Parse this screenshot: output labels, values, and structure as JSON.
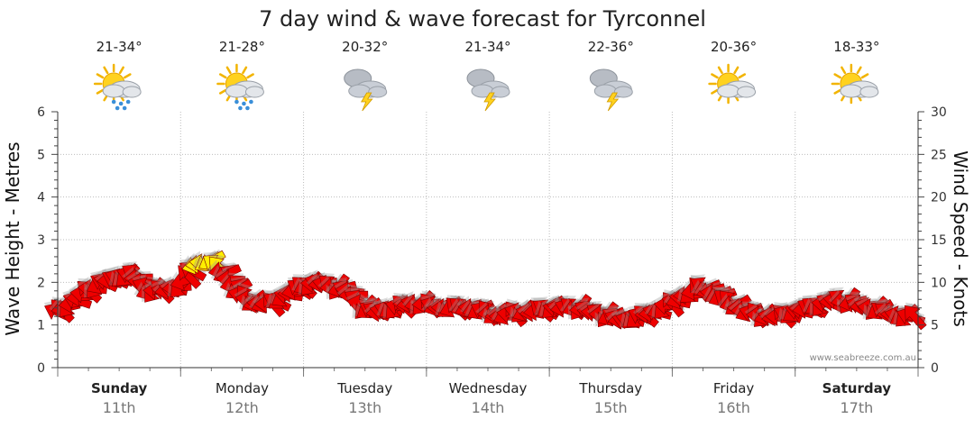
{
  "chart_data": {
    "type": "line",
    "title": "7 day wind & wave forecast for Tyrconnel",
    "ylabel_left": "Wave Height - Metres",
    "ylabel_right": "Wind Speed - Knots",
    "ylim_left": [
      0,
      6
    ],
    "ylim_right": [
      0,
      30
    ],
    "yticks_left": [
      "0",
      "1",
      "2",
      "3",
      "4",
      "5",
      "6"
    ],
    "yticks_right": [
      "0",
      "5",
      "10",
      "15",
      "20",
      "25",
      "30"
    ],
    "grid": true,
    "watermark": "www.seabreeze.com.au",
    "days": [
      {
        "name": "Sunday",
        "date": "11th",
        "temp": "21-34°",
        "icon": "sun-cloud-rain-icon",
        "bold": true
      },
      {
        "name": "Monday",
        "date": "12th",
        "temp": "21-28°",
        "icon": "sun-cloud-rain-icon",
        "bold": false
      },
      {
        "name": "Tuesday",
        "date": "13th",
        "temp": "20-32°",
        "icon": "storm-icon",
        "bold": false
      },
      {
        "name": "Wednesday",
        "date": "14th",
        "temp": "21-34°",
        "icon": "storm-icon",
        "bold": false
      },
      {
        "name": "Thursday",
        "date": "15th",
        "temp": "22-36°",
        "icon": "storm-icon",
        "bold": false
      },
      {
        "name": "Friday",
        "date": "16th",
        "temp": "20-36°",
        "icon": "sun-cloud-icon",
        "bold": false
      },
      {
        "name": "Saturday",
        "date": "17th",
        "temp": "18-33°",
        "icon": "sun-cloud-icon",
        "bold": true
      }
    ],
    "x_unit": "days from start of Sunday",
    "series": [
      {
        "name": "Wind Speed - Knots",
        "x": [
          0,
          0.125,
          0.25,
          0.375,
          0.5,
          0.625,
          0.75,
          0.875,
          1,
          1.125,
          1.25,
          1.375,
          1.5,
          1.625,
          1.75,
          1.875,
          2,
          2.125,
          2.25,
          2.375,
          2.5,
          2.625,
          2.75,
          2.875,
          3,
          3.125,
          3.25,
          3.375,
          3.5,
          3.625,
          3.75,
          3.875,
          4,
          4.125,
          4.25,
          4.375,
          4.5,
          4.625,
          4.75,
          4.875,
          5,
          5.125,
          5.25,
          5.375,
          5.5,
          5.625,
          5.75,
          5.875,
          6,
          6.125,
          6.25,
          6.375,
          6.5,
          6.625,
          6.75,
          6.875,
          7
        ],
        "values": [
          6.5,
          7.5,
          9,
          10,
          10.5,
          11,
          9,
          9,
          9.5,
          12,
          12.5,
          11,
          8.5,
          7.5,
          7.5,
          8.5,
          9.5,
          10,
          9.5,
          9,
          7,
          6.5,
          7,
          7.5,
          7.5,
          7,
          7,
          7,
          6.5,
          6,
          6.5,
          6.5,
          7,
          7,
          7,
          6.5,
          6,
          5.5,
          6,
          6.5,
          7.5,
          8.5,
          9.5,
          8.5,
          7.5,
          6.5,
          6,
          6,
          6.5,
          7,
          7.5,
          8,
          7.5,
          7,
          6.5,
          6,
          6
        ],
        "colors": {
          "low": "#ee0000",
          "high": "#ffee00"
        }
      }
    ]
  }
}
